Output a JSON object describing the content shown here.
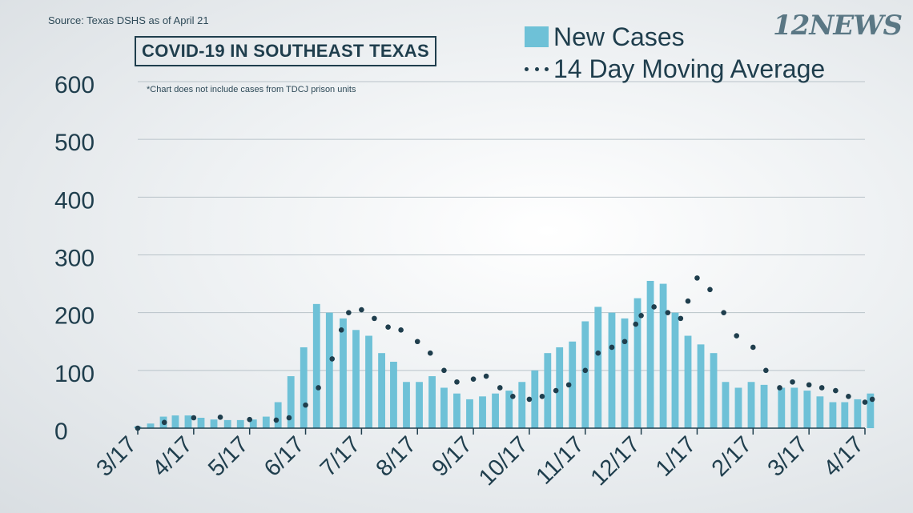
{
  "header": {
    "source": "Source: Texas DSHS as of April 21",
    "title": "COVID-19 IN SOUTHEAST TEXAS",
    "footnote": "*Chart does not include cases from TDCJ prison units",
    "brand": "12NEWS"
  },
  "legend": {
    "new_cases": "New Cases",
    "moving_avg": "14 Day Moving Average"
  },
  "colors": {
    "bars": "#6ec1d7",
    "dots": "#1f3e4d",
    "axis_text": "#1f3e4d",
    "grid": "#b9c3c9"
  },
  "chart_data": {
    "type": "bar",
    "title": "COVID-19 IN SOUTHEAST TEXAS",
    "ylim": [
      0,
      600
    ],
    "y_ticks": [
      0,
      100,
      200,
      300,
      400,
      500,
      600
    ],
    "grid": true,
    "legend_position": "top-right",
    "x_ticks": [
      "3/17",
      "4/17",
      "5/17",
      "6/17",
      "7/17",
      "8/17",
      "9/17",
      "10/17",
      "11/17",
      "12/17",
      "1/17",
      "2/17",
      "3/17",
      "4/17"
    ],
    "series": [
      {
        "name": "New Cases",
        "type": "bar",
        "x": [
          "3/17",
          "3/24",
          "3/31",
          "4/7",
          "4/14",
          "4/21",
          "4/28",
          "5/5",
          "5/12",
          "5/19",
          "5/26",
          "6/2",
          "6/9",
          "6/16",
          "6/23",
          "6/30",
          "7/7",
          "7/14",
          "7/21",
          "7/28",
          "8/4",
          "8/11",
          "8/18",
          "8/25",
          "9/1",
          "9/8",
          "9/15",
          "9/22",
          "9/29",
          "10/6",
          "10/13",
          "10/20",
          "10/27",
          "11/3",
          "11/10",
          "11/17",
          "11/24",
          "12/1",
          "12/8",
          "12/15",
          "12/22",
          "12/29",
          "1/5",
          "1/12",
          "1/19",
          "1/26",
          "2/2",
          "2/9",
          "2/16",
          "2/23",
          "3/2",
          "3/9",
          "3/16",
          "3/23",
          "3/30",
          "4/6",
          "4/13",
          "4/20"
        ],
        "values": [
          3,
          8,
          20,
          22,
          22,
          18,
          15,
          14,
          14,
          15,
          20,
          45,
          90,
          140,
          215,
          200,
          190,
          170,
          160,
          130,
          115,
          80,
          80,
          90,
          70,
          60,
          50,
          55,
          60,
          65,
          80,
          100,
          130,
          140,
          150,
          185,
          210,
          200,
          190,
          225,
          255,
          250,
          200,
          160,
          145,
          130,
          80,
          70,
          80,
          75,
          70,
          70,
          65,
          55,
          45,
          45,
          50,
          60
        ]
      },
      {
        "name": "14 Day Moving Average",
        "type": "scatter",
        "x": [
          "3/17",
          "4/1",
          "4/17",
          "5/1",
          "5/17",
          "6/1",
          "6/8",
          "6/17",
          "6/24",
          "7/1",
          "7/6",
          "7/10",
          "7/17",
          "7/24",
          "8/1",
          "8/8",
          "8/17",
          "8/24",
          "9/1",
          "9/8",
          "9/17",
          "9/24",
          "10/1",
          "10/8",
          "10/17",
          "10/24",
          "11/1",
          "11/8",
          "11/17",
          "11/24",
          "12/1",
          "12/8",
          "12/14",
          "12/17",
          "12/24",
          "1/1",
          "1/8",
          "1/12",
          "1/17",
          "1/24",
          "2/1",
          "2/8",
          "2/17",
          "2/24",
          "3/1",
          "3/8",
          "3/17",
          "3/24",
          "4/1",
          "4/8",
          "4/17",
          "4/21"
        ],
        "values": [
          0,
          10,
          18,
          19,
          15,
          14,
          18,
          40,
          70,
          120,
          170,
          200,
          205,
          190,
          175,
          170,
          150,
          130,
          100,
          80,
          85,
          90,
          70,
          55,
          50,
          55,
          65,
          75,
          100,
          130,
          140,
          150,
          180,
          195,
          210,
          200,
          190,
          220,
          260,
          240,
          200,
          160,
          140,
          100,
          70,
          80,
          75,
          70,
          65,
          55,
          45,
          50
        ]
      }
    ]
  }
}
